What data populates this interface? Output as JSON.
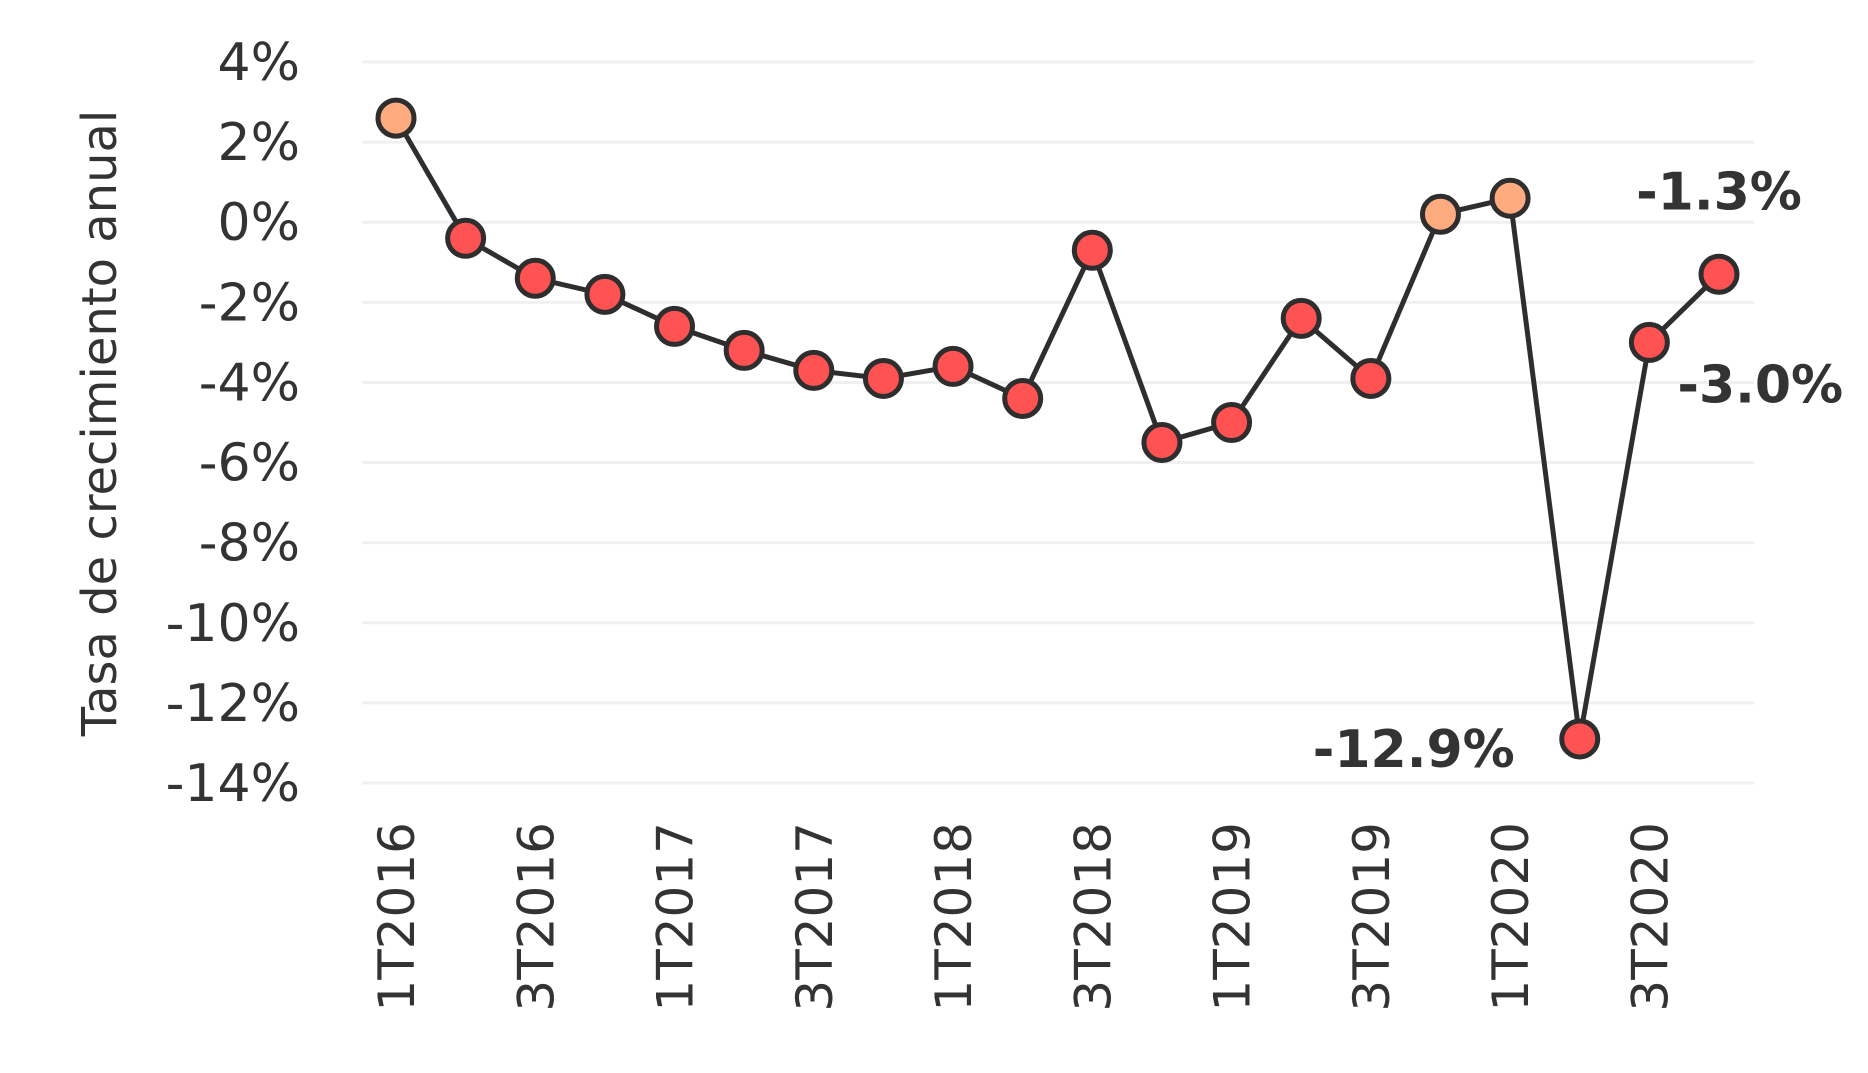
{
  "chart_data": {
    "type": "line",
    "title": "",
    "xlabel": "",
    "ylabel": "Tasa de crecimiento anual",
    "ylim": [
      -14,
      4
    ],
    "yticks": [
      4,
      2,
      0,
      -2,
      -4,
      -6,
      -8,
      -10,
      -12,
      -14
    ],
    "ytick_labels": [
      "4%",
      "2%",
      "0%",
      "-2%",
      "-4%",
      "-6%",
      "-8%",
      "-10%",
      "-12%",
      "-14%"
    ],
    "grid": "horizontal",
    "x": [
      "1T2016",
      "2T2016",
      "3T2016",
      "4T2016",
      "1T2017",
      "2T2017",
      "3T2017",
      "4T2017",
      "1T2018",
      "2T2018",
      "3T2018",
      "4T2018",
      "1T2019",
      "2T2019",
      "3T2019",
      "4T2019",
      "1T2020",
      "2T2020",
      "3T2020",
      "4T2020"
    ],
    "xtick_labels": [
      "1T2016",
      "3T2016",
      "1T2017",
      "3T2017",
      "1T2018",
      "3T2018",
      "1T2019",
      "3T2019",
      "1T2020",
      "3T2020"
    ],
    "values": [
      2.6,
      -0.4,
      -1.4,
      -1.8,
      -2.6,
      -3.2,
      -3.7,
      -3.9,
      -3.6,
      -4.4,
      -0.7,
      -5.5,
      -5.0,
      -2.4,
      -3.9,
      0.2,
      0.6,
      -12.9,
      -3.0,
      -1.3
    ],
    "annotations": [
      {
        "index": 17,
        "text": "-12.9%"
      },
      {
        "index": 18,
        "text": "-3.0%"
      },
      {
        "index": 19,
        "text": "-1.3%"
      }
    ],
    "colors": {
      "line": "#2e2e2e",
      "negative": "#ff5252",
      "positive": "#ffab80",
      "grid": "#f0f0f0"
    }
  }
}
